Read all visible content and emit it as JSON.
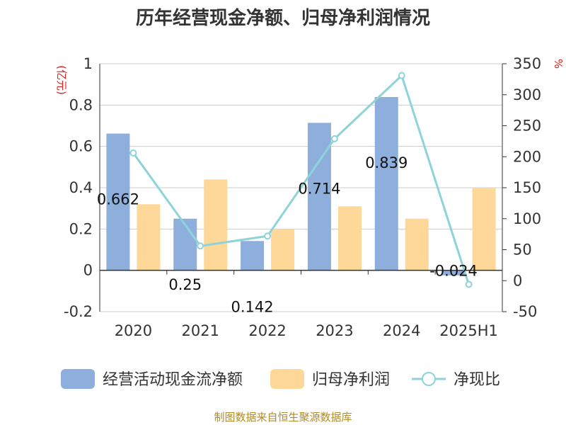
{
  "chart_data": {
    "type": "bar",
    "title": "历年经营现金净额、归母净利润情况",
    "categories": [
      "2020",
      "2021",
      "2022",
      "2023",
      "2024",
      "2025H1"
    ],
    "y_left": {
      "unit": "(亿元)",
      "range": [
        -0.2,
        1
      ],
      "ticks": [
        "1",
        "0.8",
        "0.6",
        "0.4",
        "0.2",
        "0",
        "-0.2"
      ]
    },
    "y_right": {
      "unit": "%",
      "range": [
        -50,
        350
      ],
      "ticks": [
        "350",
        "300",
        "250",
        "200",
        "150",
        "100",
        "50",
        "0",
        "-50"
      ]
    },
    "series": [
      {
        "name": "经营活动现金流净额",
        "type": "bar",
        "axis": "left",
        "color": "#8eaedc",
        "values": [
          0.662,
          0.25,
          0.142,
          0.714,
          0.839,
          -0.024
        ],
        "labels": [
          "0.662",
          "0.25",
          "0.142",
          "0.714",
          "0.839",
          "-0.024"
        ]
      },
      {
        "name": "归母净利润",
        "type": "bar",
        "axis": "left",
        "color": "#fdd899",
        "values": [
          0.32,
          0.44,
          0.2,
          0.31,
          0.25,
          0.4
        ]
      },
      {
        "name": "净现比",
        "type": "line",
        "axis": "right",
        "color": "#8dd3d8",
        "values": [
          206,
          56,
          72,
          229,
          331,
          -6
        ]
      }
    ],
    "grid": true,
    "legend_position": "bottom"
  },
  "footer": "制图数据来自恒生聚源数据库"
}
